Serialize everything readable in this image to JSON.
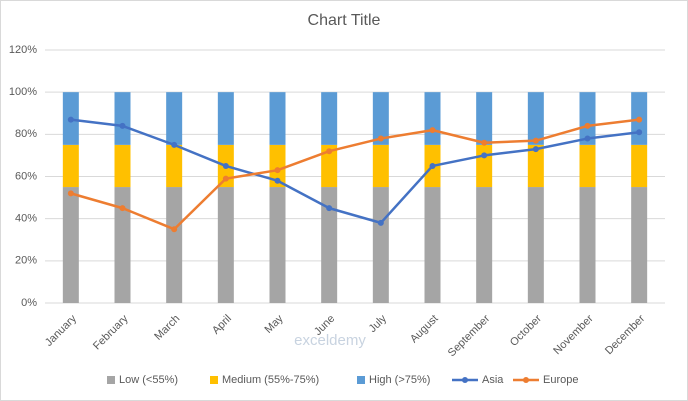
{
  "chart_data": {
    "type": "combo",
    "title": "Chart Title",
    "watermark": "exceldemy",
    "categories": [
      "January",
      "February",
      "March",
      "April",
      "May",
      "June",
      "July",
      "August",
      "September",
      "October",
      "November",
      "December"
    ],
    "stacked": true,
    "series": [
      {
        "name": "Low (<55%)",
        "type": "bar",
        "color": "#a5a5a5",
        "values": [
          55,
          55,
          55,
          55,
          55,
          55,
          55,
          55,
          55,
          55,
          55,
          55
        ]
      },
      {
        "name": "Medium (55%-75%)",
        "type": "bar",
        "color": "#ffc000",
        "values": [
          20,
          20,
          20,
          20,
          20,
          20,
          20,
          20,
          20,
          20,
          20,
          20
        ]
      },
      {
        "name": "High (>75%)",
        "type": "bar",
        "color": "#5b9bd5",
        "values": [
          25,
          25,
          25,
          25,
          25,
          25,
          25,
          25,
          25,
          25,
          25,
          25
        ]
      },
      {
        "name": "Asia",
        "type": "line",
        "color": "#4472c4",
        "values": [
          87,
          84,
          75,
          65,
          58,
          45,
          38,
          65,
          70,
          73,
          78,
          81
        ]
      },
      {
        "name": "Europe",
        "type": "line",
        "color": "#ed7d31",
        "values": [
          52,
          45,
          35,
          59,
          63,
          72,
          78,
          82,
          76,
          77,
          84,
          87
        ]
      }
    ],
    "ylim": [
      0,
      120
    ],
    "yticks": [
      {
        "value": 0,
        "label": "0%"
      },
      {
        "value": 20,
        "label": "20%"
      },
      {
        "value": 40,
        "label": "40%"
      },
      {
        "value": 60,
        "label": "60%"
      },
      {
        "value": 80,
        "label": "80%"
      },
      {
        "value": 100,
        "label": "100%"
      },
      {
        "value": 120,
        "label": "120%"
      }
    ],
    "grid": true,
    "legend": "bottom"
  }
}
